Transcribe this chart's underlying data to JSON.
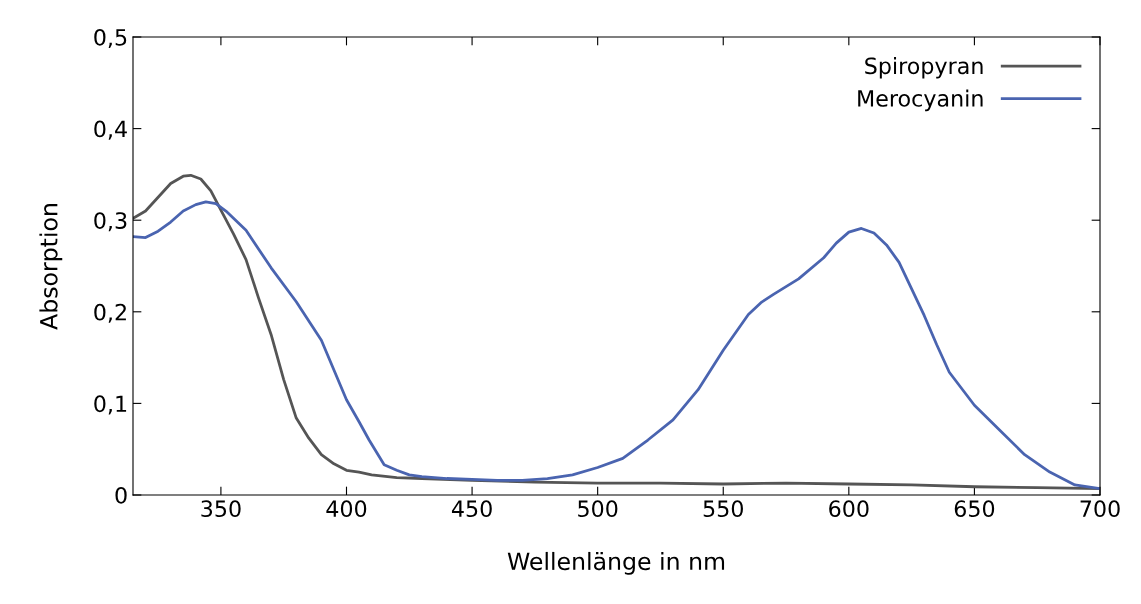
{
  "chart_data": {
    "type": "line",
    "xlabel": "Wellenlänge in nm",
    "ylabel": "Absorption",
    "xlim": [
      315,
      700
    ],
    "xticks": [
      350,
      400,
      450,
      500,
      550,
      600,
      650,
      700
    ],
    "ylim": [
      0,
      0.5
    ],
    "yticks": [
      {
        "value": 0,
        "label": "0"
      },
      {
        "value": 0.1,
        "label": "0,1"
      },
      {
        "value": 0.2,
        "label": "0,2"
      },
      {
        "value": 0.3,
        "label": "0,3"
      },
      {
        "value": 0.4,
        "label": "0,4"
      },
      {
        "value": 0.5,
        "label": "0,5"
      }
    ],
    "grid": false,
    "legend": "top right",
    "line_style": "solid",
    "marker": "none",
    "series": [
      {
        "name": "Spiropyran",
        "color": "#555555",
        "x": [
          315,
          320,
          325,
          330,
          335,
          338,
          342,
          346,
          350,
          355,
          360,
          365,
          370,
          375,
          380,
          385,
          390,
          395,
          400,
          405,
          410,
          420,
          430,
          450,
          475,
          500,
          525,
          550,
          575,
          600,
          625,
          650,
          675,
          700
        ],
        "values": [
          0.302,
          0.31,
          0.325,
          0.34,
          0.348,
          0.349,
          0.345,
          0.332,
          0.311,
          0.285,
          0.257,
          0.215,
          0.175,
          0.126,
          0.084,
          0.062,
          0.044,
          0.034,
          0.027,
          0.025,
          0.022,
          0.019,
          0.018,
          0.016,
          0.014,
          0.013,
          0.013,
          0.012,
          0.013,
          0.012,
          0.011,
          0.009,
          0.008,
          0.007
        ]
      },
      {
        "name": "Merocyanin",
        "color": "#4a64b0",
        "x": [
          315,
          320,
          325,
          330,
          335,
          340,
          344,
          348,
          352,
          360,
          370,
          380,
          390,
          400,
          405,
          409,
          415,
          420,
          425,
          430,
          440,
          450,
          460,
          470,
          480,
          490,
          500,
          510,
          520,
          530,
          540,
          550,
          560,
          565,
          570,
          580,
          590,
          595,
          600,
          605,
          610,
          615,
          620,
          630,
          635,
          640,
          650,
          660,
          670,
          680,
          690,
          700
        ],
        "values": [
          0.282,
          0.281,
          0.288,
          0.298,
          0.31,
          0.317,
          0.32,
          0.318,
          0.31,
          0.289,
          0.248,
          0.211,
          0.169,
          0.104,
          0.08,
          0.06,
          0.033,
          0.027,
          0.022,
          0.02,
          0.018,
          0.017,
          0.016,
          0.016,
          0.018,
          0.022,
          0.03,
          0.04,
          0.06,
          0.082,
          0.115,
          0.158,
          0.197,
          0.21,
          0.219,
          0.236,
          0.259,
          0.275,
          0.287,
          0.291,
          0.286,
          0.273,
          0.254,
          0.196,
          0.164,
          0.134,
          0.098,
          0.071,
          0.044,
          0.025,
          0.011,
          0.007
        ]
      }
    ]
  }
}
